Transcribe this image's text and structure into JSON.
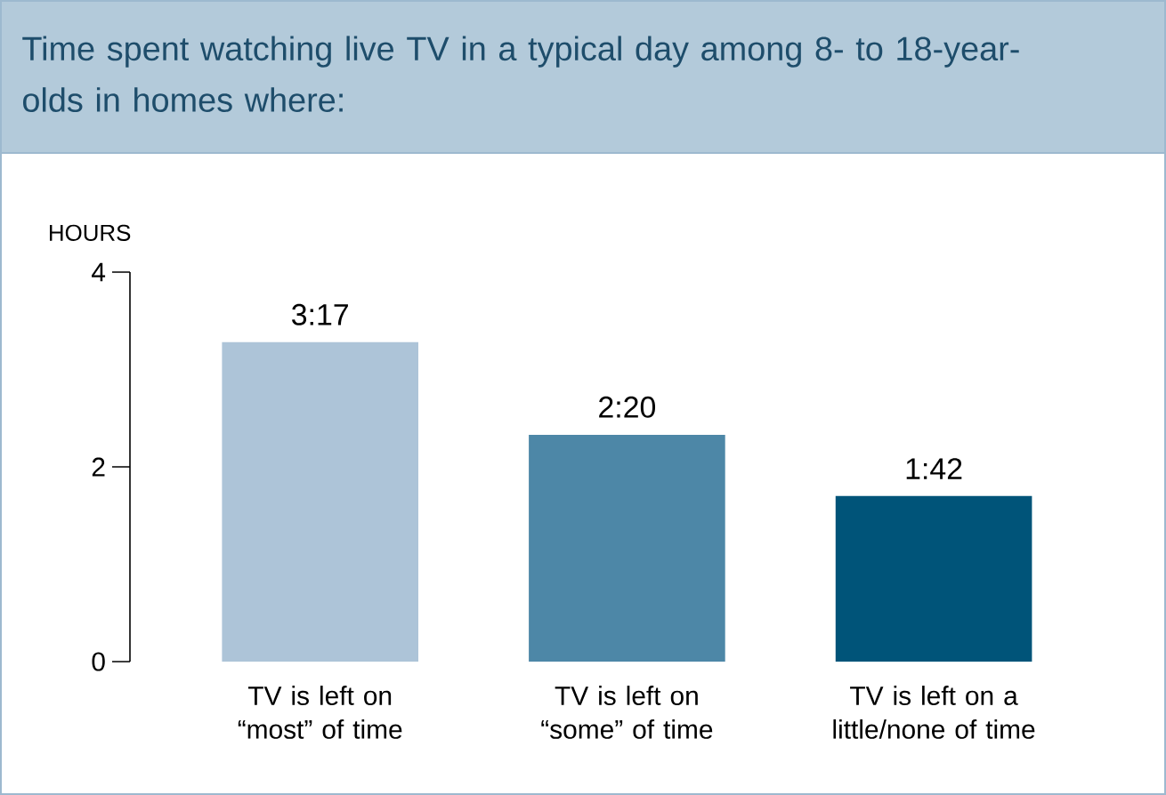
{
  "chart_data": {
    "type": "bar",
    "title": "Time spent watching live TV in a typical day among 8- to 18-year-olds in homes where:",
    "ylabel": "HOURS",
    "categories": [
      "TV is left on “most” of time",
      "TV is left on “some” of time",
      "TV is left on a little/none of time"
    ],
    "values": [
      3.28,
      2.33,
      1.7
    ],
    "value_labels": [
      "3:17",
      "2:20",
      "1:42"
    ],
    "colors": [
      "#adc4d8",
      "#4d87a7",
      "#005479"
    ],
    "ylim": [
      0,
      4
    ],
    "yticks": [
      0,
      2,
      4
    ]
  }
}
